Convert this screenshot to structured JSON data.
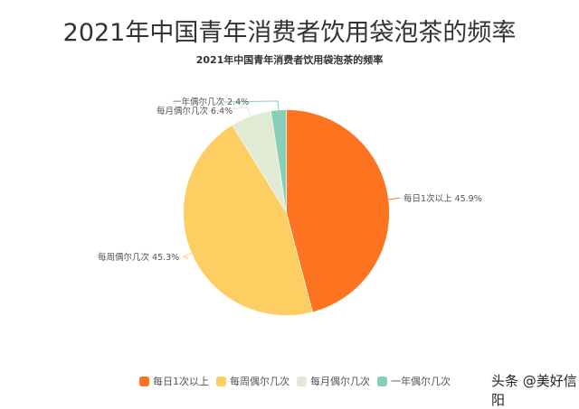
{
  "header": {
    "title": "2021年中国青年消费者饮用袋泡茶的频率",
    "subtitle": "2021年中国青年消费者饮用袋泡茶的频率"
  },
  "chart_data": {
    "type": "pie",
    "title": "2021年中国青年消费者饮用袋泡茶的频率",
    "categories": [
      "每日1次以上",
      "每周偶尔几次",
      "每月偶尔几次",
      "一年偶尔几次"
    ],
    "values": [
      45.9,
      45.3,
      6.4,
      2.4
    ],
    "unit": "%",
    "colors": [
      "#FD7420",
      "#FDCF63",
      "#E2EAD3",
      "#88CFBA"
    ],
    "data_labels": [
      "每日1次以上 45.9%",
      "每周偶尔几次 45.3%",
      "每月偶尔几次 6.4%",
      "一年偶尔几次 2.4%"
    ],
    "legend_position": "bottom",
    "start_angle": "12 o'clock, clockwise"
  },
  "legend": {
    "items": [
      {
        "label": "每日1次以上",
        "color": "#FD7420"
      },
      {
        "label": "每周偶尔几次",
        "color": "#FDCF63"
      },
      {
        "label": "每月偶尔几次",
        "color": "#E2EAD3"
      },
      {
        "label": "一年偶尔几次",
        "color": "#88CFBA"
      }
    ]
  },
  "watermark": {
    "text": "头条 @美好信阳"
  }
}
